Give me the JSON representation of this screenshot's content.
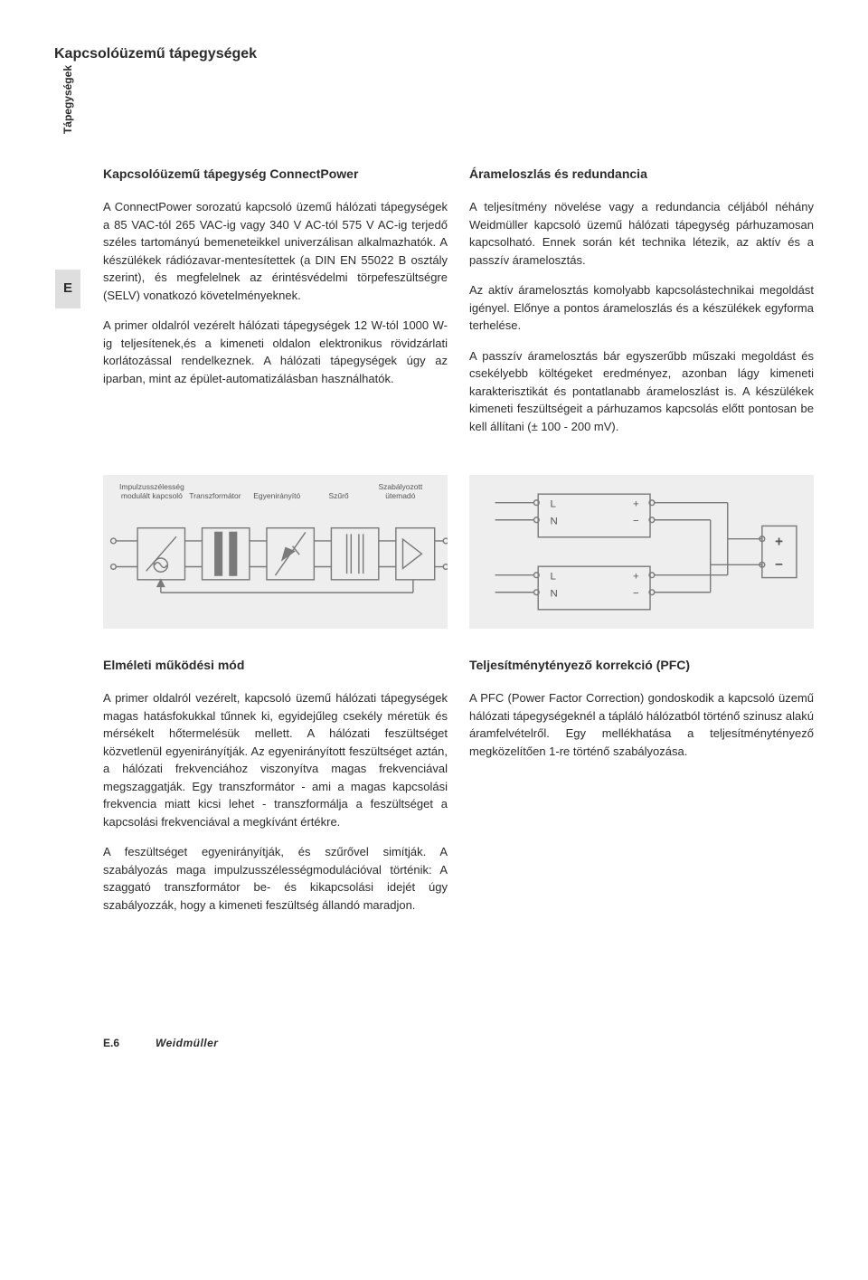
{
  "page_title": "Kapcsolóüzemű tápegységek",
  "side_label": "Tápegységek",
  "section_tab": "E",
  "left_col": {
    "heading": "Kapcsolóüzemű tápegység ConnectPower",
    "p1": "A ConnectPower sorozatú kapcsoló üzemű hálózati tápegységek a 85 VAC-tól 265 VAC-ig vagy 340 V AC-tól 575 V AC-ig terjedő széles tartományú bemeneteikkel univerzálisan alkalmazhatók. A készülékek rádiózavar-mentesítettek (a DIN EN 55022 B osztály szerint), és megfelelnek az érintésvédelmi törpefeszültségre (SELV) vonatkozó követelményeknek.",
    "p2": "A primer oldalról vezérelt hálózati tápegységek 12 W-tól 1000 W-ig teljesítenek,és a kimeneti oldalon elektronikus rövidzárlati korlátozással rendelkeznek. A hálózati tápegységek úgy az iparban, mint az épület-automatizálásban használhatók."
  },
  "right_col": {
    "heading": "Árameloszlás és redundancia",
    "p1": "A teljesítmény növelése vagy a redundancia céljából néhány Weidmüller kapcsoló üzemű hálózati tápegység párhuzamosan kapcsolható. Ennek során két technika létezik, az aktív és a passzív áramelosztás.",
    "p2": "Az aktív áramelosztás komolyabb kapcsolástechnikai megoldást igényel. Előnye a pontos árameloszlás és a készülékek egyforma terhelése.",
    "p3": "A passzív áramelosztás bár egyszerűbb műszaki megoldást és csekélyebb költégeket eredményez, azonban lágy kimeneti karakterisztikát és pontatlanabb árameloszlást is. A készülékek kimeneti feszültségeit a párhuzamos kapcsolás előtt pontosan be kell állítani (± 100 - 200 mV)."
  },
  "diagram_left": {
    "labels": [
      "Impulzusszélesség\nmodulált kapcsoló",
      "Transzformátor",
      "Egyenirányító",
      "Szűrő",
      "Szabályozott\nütemadó"
    ],
    "stroke": "#7a7a7a",
    "bg": "#eeeeee"
  },
  "diagram_right": {
    "labels": {
      "L": "L",
      "N": "N",
      "plus": "+",
      "minus": "−"
    },
    "stroke": "#7a7a7a",
    "bg": "#eeeeee"
  },
  "bottom_left": {
    "heading": "Elméleti működési mód",
    "p1": "A primer oldalról vezérelt, kapcsoló üzemű hálózati tápegységek magas hatásfokukkal tűnnek ki, egyidejűleg csekély méretük és mérsékelt hőtermelésük mellett. A hálózati feszültséget közvetlenül egyenirányítják. Az egyenirányított feszültséget aztán, a hálózati frekvenciához viszonyítva magas frekvenciával megszaggatják. Egy transzformátor - ami a magas kapcsolási frekvencia miatt kicsi lehet - transzformálja a feszültséget a kapcsolási frekvenciával a megkívánt értékre.",
    "p2": "A feszültséget egyenirányítják, és szűrővel simítják. A szabályozás maga impulzusszélességmodulációval történik: A szaggató transzformátor be- és kikapcsolási idejét úgy szabályozzák, hogy a kimeneti feszültség állandó maradjon."
  },
  "bottom_right": {
    "heading": "Teljesítménytényező korrekció (PFC)",
    "p1": "A PFC (Power Factor Correction) gondoskodik a kapcsoló üzemű hálózati tápegységeknél a tápláló hálózatból történő szinusz alakú áramfelvételről. Egy mellékhatása a teljesítménytényező megközelítően 1-re történő szabályozása."
  },
  "footer": {
    "page_number": "E.6",
    "brand": "Weidmüller"
  },
  "colors": {
    "text": "#2b2b2b",
    "diagram_bg": "#eeeeee",
    "diagram_stroke": "#7a7a7a",
    "tab_bg": "#dedede"
  }
}
